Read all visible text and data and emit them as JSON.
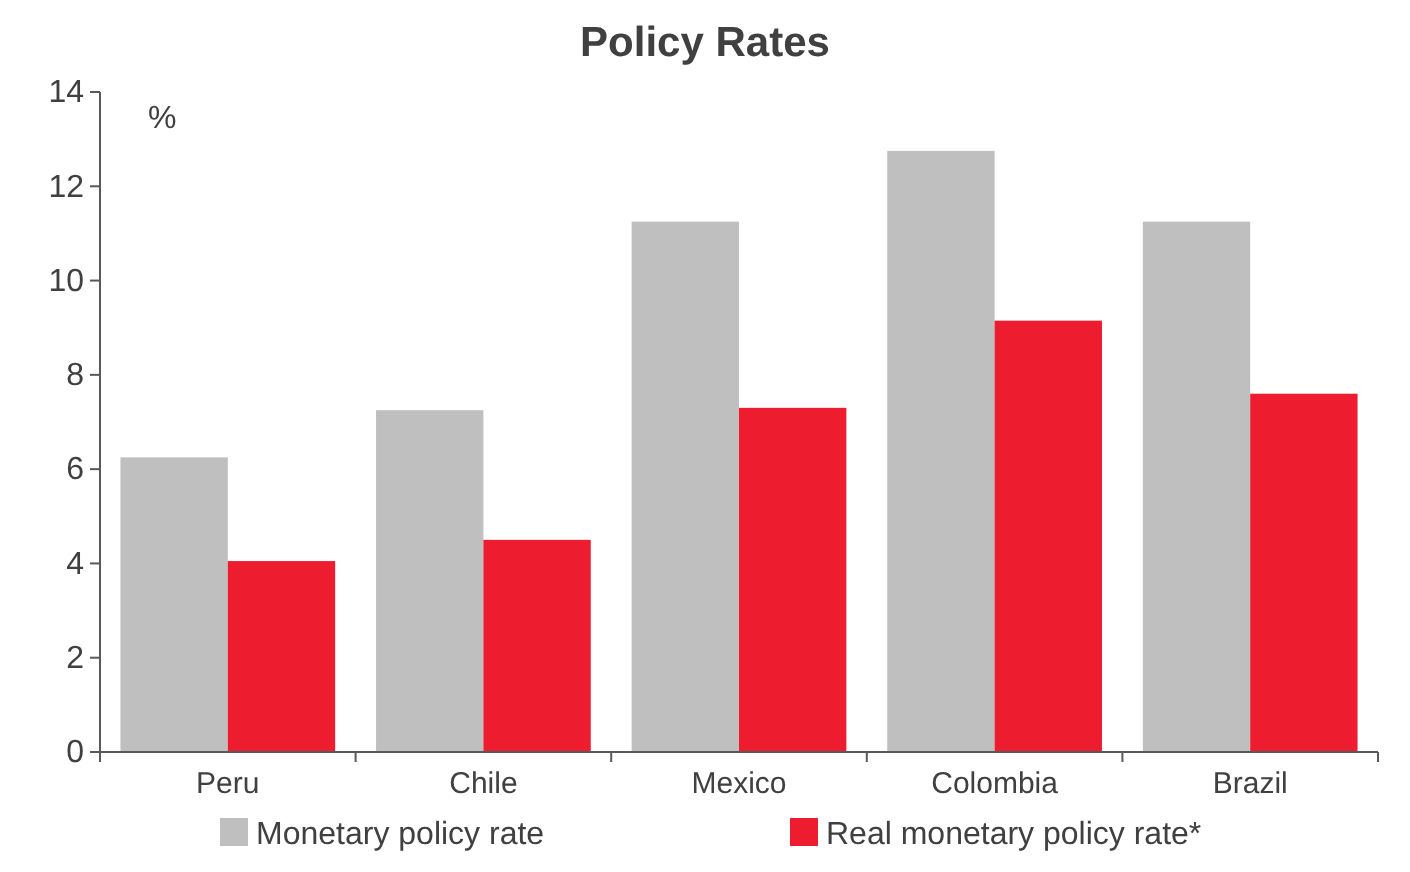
{
  "chart_data": {
    "type": "bar",
    "title": "Policy Rates",
    "ylabel": "%",
    "categories": [
      "Peru",
      "Chile",
      "Mexico",
      "Colombia",
      "Brazil"
    ],
    "series": [
      {
        "name": "Monetary policy rate",
        "color": "#bfbfbf",
        "values": [
          6.25,
          7.25,
          11.25,
          12.75,
          11.25
        ]
      },
      {
        "name": "Real monetary policy rate*",
        "color": "#ed1c2e",
        "values": [
          4.05,
          4.5,
          7.3,
          9.15,
          7.6
        ]
      }
    ],
    "ylim": [
      0,
      14
    ],
    "yticks": [
      0,
      2,
      4,
      6,
      8,
      10,
      12,
      14
    ],
    "grid": false,
    "legend": "bottom"
  }
}
